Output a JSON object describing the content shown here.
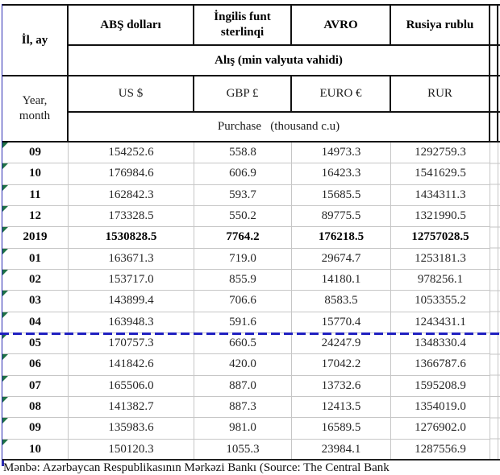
{
  "header": {
    "row_label_az": "İl, ay",
    "row_label_en": "Year,\nmonth",
    "currencies_az": [
      "ABŞ dolları",
      "İngilis funt sterlinqi",
      "AVRO",
      "Rusiya rublu"
    ],
    "purchase_az": "Alış (min valyuta vahidi)",
    "currencies_en": [
      "US $",
      "GBP £",
      "EURO €",
      "RUR"
    ],
    "purchase_en": "Purchase   (thousand c.u)"
  },
  "table": {
    "columns": [
      "month",
      "usd",
      "gbp",
      "eur",
      "rur"
    ],
    "rows": [
      {
        "month": "09",
        "usd": "154252.6",
        "gbp": "558.8",
        "eur": "14973.3",
        "rur": "1292759.3",
        "bold": false
      },
      {
        "month": "10",
        "usd": "176984.6",
        "gbp": "606.9",
        "eur": "16423.3",
        "rur": "1541629.5",
        "bold": false
      },
      {
        "month": "11",
        "usd": "162842.3",
        "gbp": "593.7",
        "eur": "15685.5",
        "rur": "1434311.3",
        "bold": false
      },
      {
        "month": "12",
        "usd": "173328.5",
        "gbp": "550.2",
        "eur": "89775.5",
        "rur": "1321990.5",
        "bold": false
      },
      {
        "month": "2019",
        "usd": "1530828.5",
        "gbp": "7764.2",
        "eur": "176218.5",
        "rur": "12757028.5",
        "bold": true
      },
      {
        "month": "01",
        "usd": "163671.3",
        "gbp": "719.0",
        "eur": "29674.7",
        "rur": "1253181.3",
        "bold": false
      },
      {
        "month": "02",
        "usd": "153717.0",
        "gbp": "855.9",
        "eur": "14180.1",
        "rur": "978256.1",
        "bold": false
      },
      {
        "month": "03",
        "usd": "143899.4",
        "gbp": "706.6",
        "eur": "8583.5",
        "rur": "1053355.2",
        "bold": false
      },
      {
        "month": "04",
        "usd": "163948.3",
        "gbp": "591.6",
        "eur": "15770.4",
        "rur": "1243431.1",
        "bold": false
      },
      {
        "month": "05",
        "usd": "170757.3",
        "gbp": "660.5",
        "eur": "24247.9",
        "rur": "1348330.4",
        "bold": false
      },
      {
        "month": "06",
        "usd": "141842.6",
        "gbp": "420.0",
        "eur": "17042.2",
        "rur": "1366787.6",
        "bold": false
      },
      {
        "month": "07",
        "usd": "165506.0",
        "gbp": "887.0",
        "eur": "13732.6",
        "rur": "1595208.9",
        "bold": false
      },
      {
        "month": "08",
        "usd": "141382.7",
        "gbp": "887.3",
        "eur": "12413.5",
        "rur": "1354019.0",
        "bold": false
      },
      {
        "month": "09",
        "usd": "135983.6",
        "gbp": "981.0",
        "eur": "16589.5",
        "rur": "1276902.0",
        "bold": false
      },
      {
        "month": "10",
        "usd": "150120.3",
        "gbp": "1055.3",
        "eur": "23984.1",
        "rur": "1287556.9",
        "bold": false
      }
    ]
  },
  "footer": {
    "source_text": "Mənbə: Azərbaycan Respublikasının Mərkəzi Bankı    (Source: The Central Bank"
  },
  "colors": {
    "page_break_blue": "#2020c0",
    "left_border_blue": "#2a2ab2",
    "grid_gray": "#c6c6c6",
    "header_border_black": "#111111",
    "error_triangle_green": "#1e7145"
  }
}
